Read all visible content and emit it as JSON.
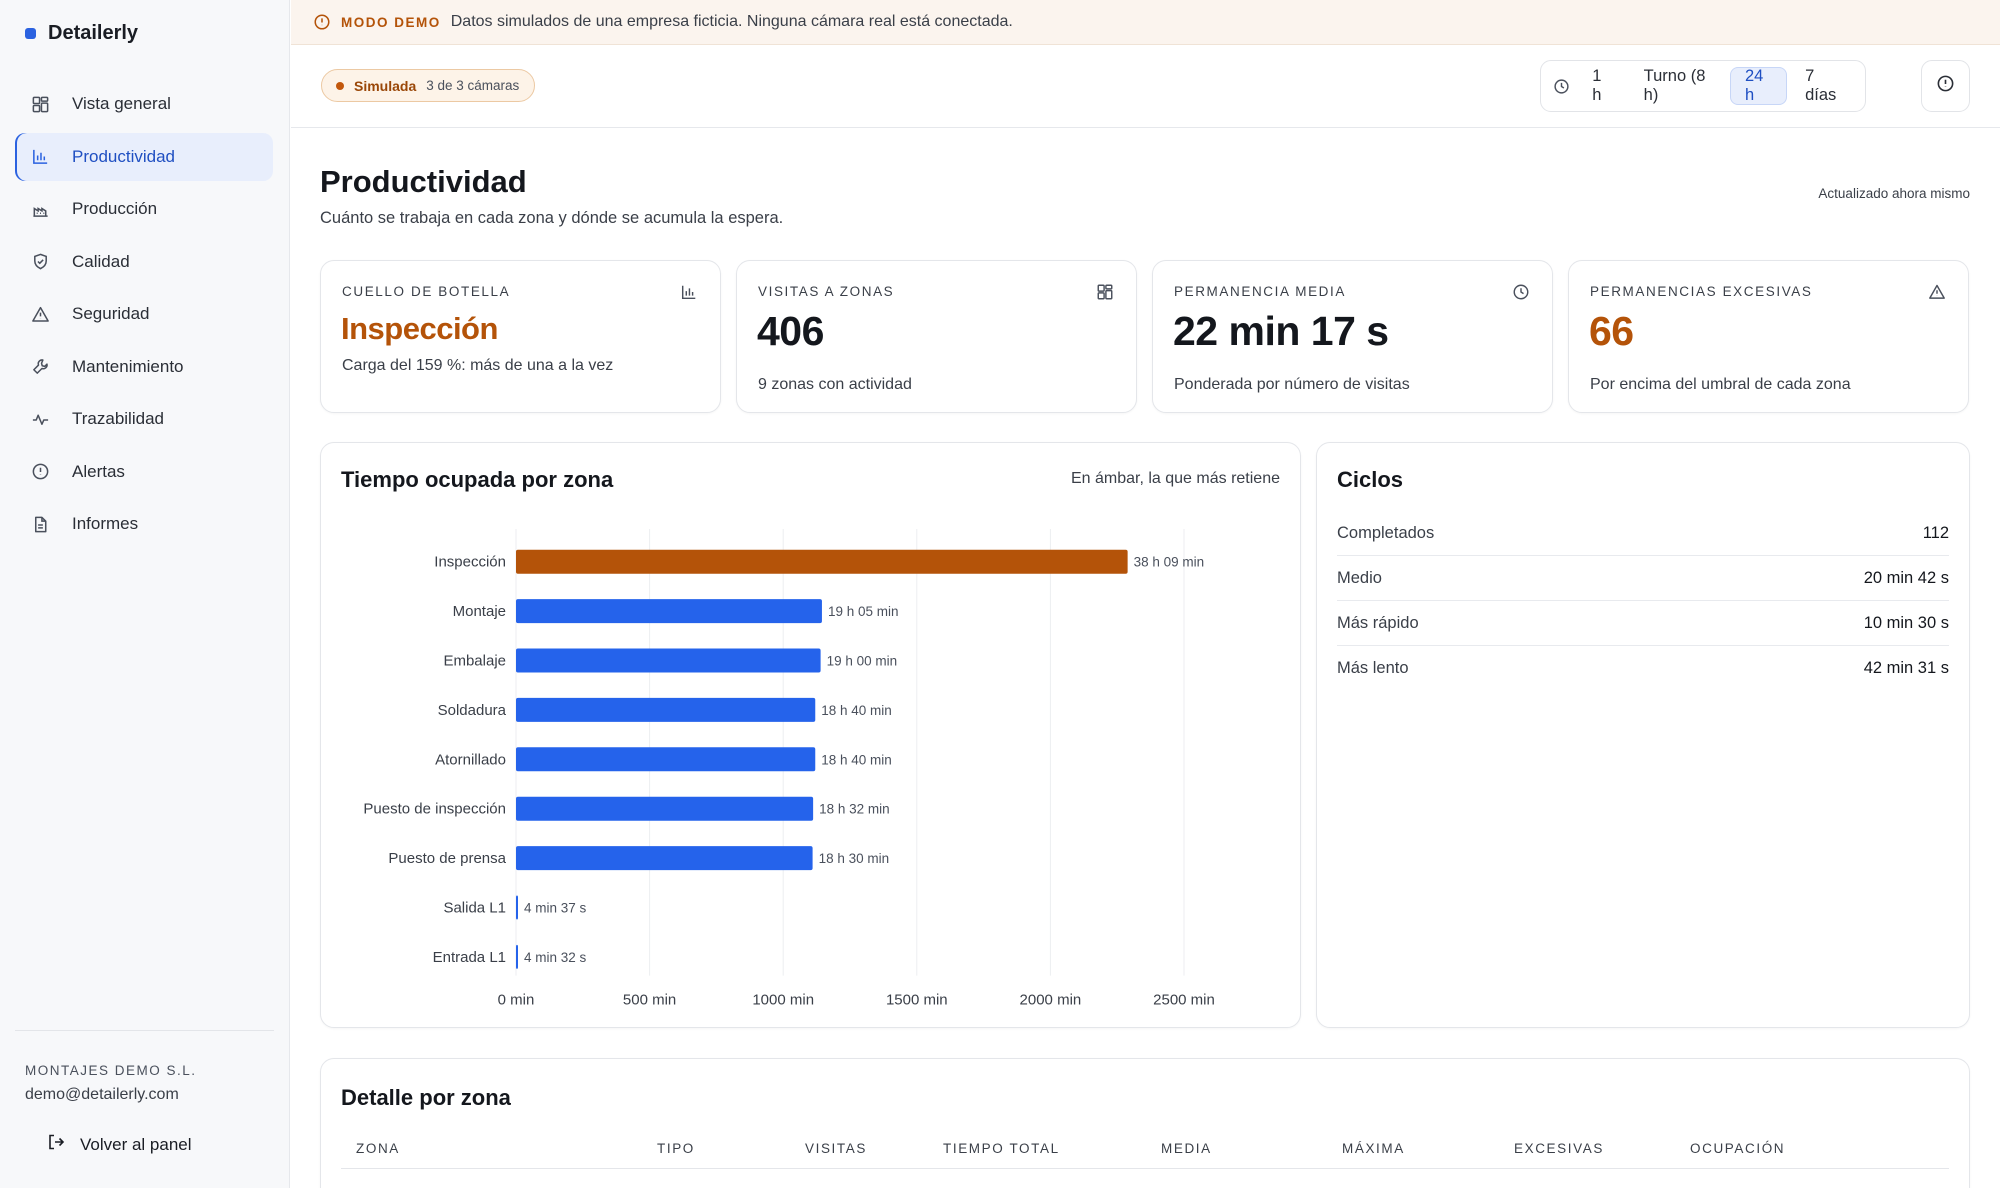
{
  "app": {
    "name": "Detailerly"
  },
  "sidebar": {
    "items": [
      {
        "label": "Vista general",
        "icon": "grid-icon"
      },
      {
        "label": "Productividad",
        "icon": "bar-chart-icon",
        "active": true
      },
      {
        "label": "Producción",
        "icon": "factory-icon"
      },
      {
        "label": "Calidad",
        "icon": "shield-check-icon"
      },
      {
        "label": "Seguridad",
        "icon": "warning-icon"
      },
      {
        "label": "Mantenimiento",
        "icon": "wrench-icon"
      },
      {
        "label": "Trazabilidad",
        "icon": "activity-icon"
      },
      {
        "label": "Alertas",
        "icon": "alert-circle-icon"
      },
      {
        "label": "Informes",
        "icon": "file-icon"
      }
    ],
    "org": "MONTAJES DEMO S.L.",
    "email": "demo@detailerly.com",
    "back_label": "Volver al panel"
  },
  "banner": {
    "tag": "MODO DEMO",
    "text": "Datos simulados de una empresa ficticia. Ninguna cámara real está conectada."
  },
  "toolbar": {
    "badge_label": "Simulada",
    "badge_count": "3 de 3 cámaras",
    "ranges": [
      "1 h",
      "Turno (8 h)",
      "24 h",
      "7 días"
    ],
    "active_range": "24 h"
  },
  "page": {
    "title": "Productividad",
    "subtitle": "Cuánto se trabaja en cada zona y dónde se acumula la espera.",
    "updated": "Actualizado ahora mismo"
  },
  "kpis": [
    {
      "label": "CUELLO DE BOTELLA",
      "value": "Inspección",
      "note": "Carga del 159 %: más de una a la vez",
      "icon": "bar-chart-icon"
    },
    {
      "label": "VISITAS A ZONAS",
      "value": "406",
      "note": "9 zonas con actividad",
      "icon": "grid-icon"
    },
    {
      "label": "PERMANENCIA MEDIA",
      "value": "22 min 17 s",
      "note": "Ponderada por número de visitas",
      "icon": "clock-icon"
    },
    {
      "label": "PERMANENCIAS EXCESIVAS",
      "value": "66",
      "note": "Por encima del umbral de cada zona",
      "icon": "warning-icon"
    }
  ],
  "chart_card": {
    "title": "Tiempo ocupada por zona",
    "note": "En ámbar, la que más retiene"
  },
  "chart_data": {
    "type": "bar",
    "orientation": "horizontal",
    "categories": [
      "Inspección",
      "Montaje",
      "Embalaje",
      "Soldadura",
      "Atornillado",
      "Puesto de inspección",
      "Puesto de prensa",
      "Salida L1",
      "Entrada L1"
    ],
    "values": [
      2289,
      1145,
      1140,
      1120,
      1120,
      1112,
      1110,
      4.62,
      4.53
    ],
    "data_labels": [
      "38 h 09 min",
      "19 h 05 min",
      "19 h 00 min",
      "18 h 40 min",
      "18 h 40 min",
      "18 h 32 min",
      "18 h 30 min",
      "4 min 37 s",
      "4 min 32 s"
    ],
    "x_ticks": [
      0,
      500,
      1000,
      1500,
      2000,
      2500
    ],
    "x_tick_labels": [
      "0 min",
      "500 min",
      "1000 min",
      "1500 min",
      "2000 min",
      "2500 min"
    ],
    "xlim": [
      0,
      2500
    ],
    "highlight_index": 0,
    "colors": {
      "highlight": "#b45309",
      "bar": "#2563eb"
    },
    "grid": true
  },
  "cycles": {
    "title": "Ciclos",
    "rows": [
      {
        "label": "Completados",
        "value": "112"
      },
      {
        "label": "Medio",
        "value": "20 min 42 s"
      },
      {
        "label": "Más rápido",
        "value": "10 min 30 s"
      },
      {
        "label": "Más lento",
        "value": "42 min 31 s"
      }
    ]
  },
  "detail": {
    "title": "Detalle por zona",
    "columns": [
      "ZONA",
      "TIPO",
      "VISITAS",
      "TIEMPO TOTAL",
      "MEDIA",
      "MÁXIMA",
      "EXCESIVAS",
      "OCUPACIÓN"
    ]
  }
}
